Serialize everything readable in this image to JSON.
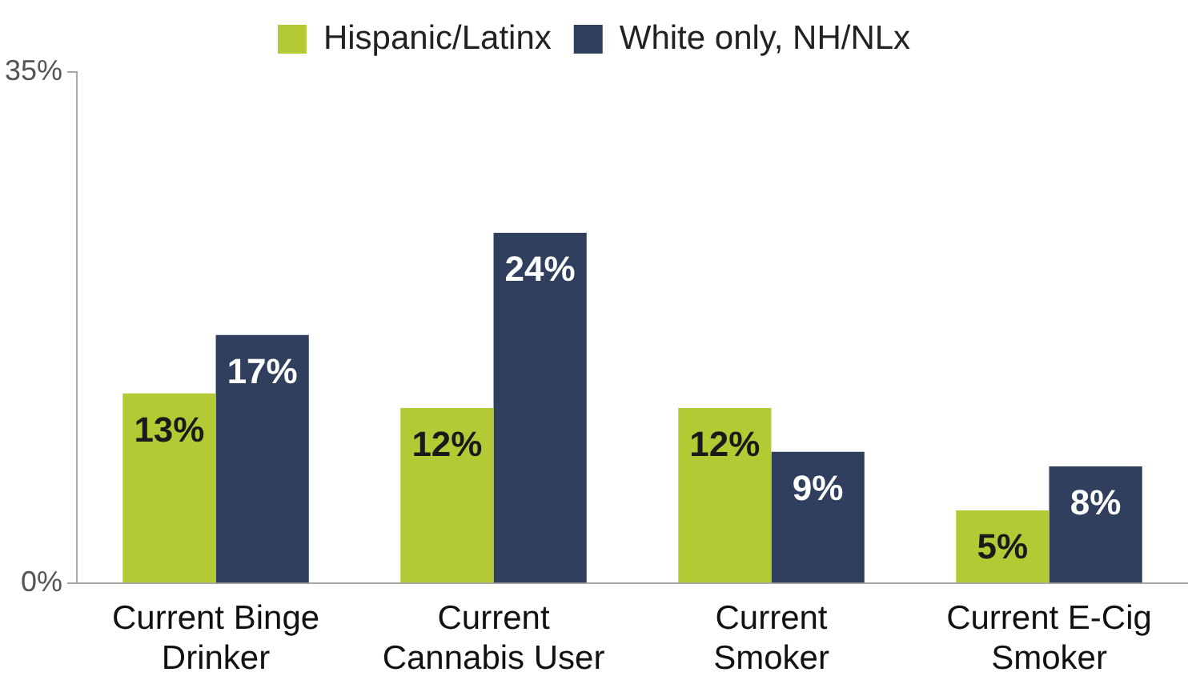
{
  "chart_data": {
    "type": "bar",
    "categories": [
      "Current Binge\nDrinker",
      "Current\nCannabis User",
      "Current\nSmoker",
      "Current E-Cig\nSmoker"
    ],
    "series": [
      {
        "name": "Hispanic/Latinx",
        "color": "#b3ca34",
        "values": [
          13,
          12,
          12,
          5
        ]
      },
      {
        "name": "White only, NH/NLx",
        "color": "#2f3f5d",
        "values": [
          17,
          24,
          9,
          8
        ]
      }
    ],
    "ylim": [
      0,
      35
    ],
    "yticks": [
      {
        "value": 0,
        "label": "0%"
      },
      {
        "value": 35,
        "label": "35%"
      }
    ],
    "value_labels": [
      [
        "13%",
        "12%",
        "12%",
        "5%"
      ],
      [
        "17%",
        "24%",
        "9%",
        "8%"
      ]
    ],
    "grid": false,
    "legend": "top"
  }
}
